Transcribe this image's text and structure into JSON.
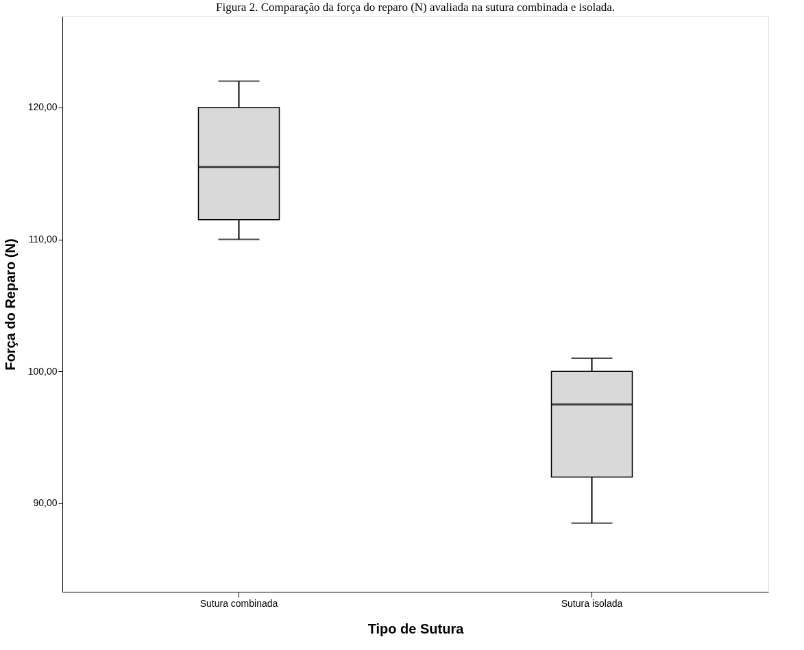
{
  "chart_data": {
    "type": "box",
    "title": "Figura 2. Comparação da força do reparo (N) avaliada na sutura combinada e isolada.",
    "xlabel": "Tipo de Sutura",
    "ylabel": "Força do Reparo (N)",
    "categories": [
      "Sutura combinada",
      "Sutura isolada"
    ],
    "boxes": [
      {
        "low": 110,
        "q1": 111.5,
        "median": 115.5,
        "q3": 120,
        "high": 122
      },
      {
        "low": 88.5,
        "q1": 92,
        "median": 97.5,
        "q3": 100,
        "high": 101
      }
    ],
    "color": "#d9d9d9",
    "ylim": [
      83.3,
      126.9
    ],
    "yticks": [
      {
        "value": 90,
        "label": "90,00"
      },
      {
        "value": 100,
        "label": "100,00"
      },
      {
        "value": 110,
        "label": "110,00"
      },
      {
        "value": 120,
        "label": "120,00"
      }
    ],
    "grid": false
  }
}
